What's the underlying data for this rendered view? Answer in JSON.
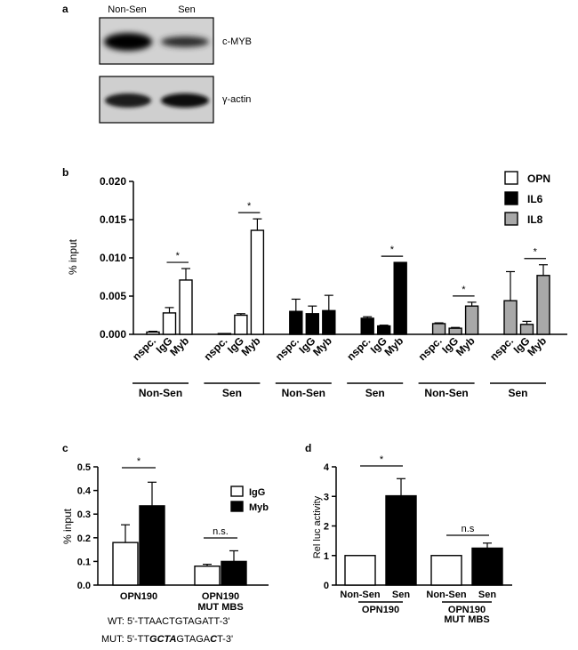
{
  "panel_a": {
    "letter": "a",
    "lanes": [
      "Non-Sen",
      "Sen"
    ],
    "blots": [
      {
        "label": "c-MYB",
        "band_intensity": [
          1.0,
          0.55
        ]
      },
      {
        "label": "γ-actin",
        "band_intensity": [
          0.9,
          0.95
        ]
      }
    ]
  },
  "chart_data": [
    {
      "panel": "b",
      "type": "bar",
      "ylabel": "% input",
      "ylim": [
        0,
        0.02
      ],
      "yticks": [
        "0.000",
        "0.005",
        "0.010",
        "0.015",
        "0.020"
      ],
      "legend": [
        {
          "name": "OPN",
          "color": "#ffffff"
        },
        {
          "name": "IL6",
          "color": "#000000"
        },
        {
          "name": "IL8",
          "color": "#a8a8a8"
        }
      ],
      "legend_position": "top-right",
      "groups": [
        {
          "series": "OPN",
          "condition": "Non-Sen",
          "categories": [
            "nspc.",
            "IgG",
            "Myb"
          ],
          "values": [
            0.0003,
            0.0028,
            0.0071
          ],
          "errors": [
            0.0001,
            0.0007,
            0.0015
          ],
          "sig": "*"
        },
        {
          "series": "OPN",
          "condition": "Sen",
          "categories": [
            "nspc.",
            "IgG",
            "Myb"
          ],
          "values": [
            0.0001,
            0.0025,
            0.0136
          ],
          "errors": [
            0.0,
            0.0002,
            0.0015
          ],
          "sig": "*"
        },
        {
          "series": "IL6",
          "condition": "Non-Sen",
          "categories": [
            "nspc.",
            "IgG",
            "Myb"
          ],
          "values": [
            0.003,
            0.0027,
            0.0031
          ],
          "errors": [
            0.0016,
            0.001,
            0.002
          ],
          "sig": ""
        },
        {
          "series": "IL6",
          "condition": "Sen",
          "categories": [
            "nspc.",
            "IgG",
            "Myb"
          ],
          "values": [
            0.0021,
            0.0011,
            0.0094
          ],
          "errors": [
            0.0002,
            0.0001,
            0.0
          ],
          "sig": "*"
        },
        {
          "series": "IL8",
          "condition": "Non-Sen",
          "categories": [
            "nspc.",
            "IgG",
            "Myb"
          ],
          "values": [
            0.0014,
            0.0008,
            0.0037
          ],
          "errors": [
            0.0001,
            0.0001,
            0.0005
          ],
          "sig": "*"
        },
        {
          "series": "IL8",
          "condition": "Sen",
          "categories": [
            "nspc.",
            "IgG",
            "Myb"
          ],
          "values": [
            0.0044,
            0.0013,
            0.0077
          ],
          "errors": [
            0.0038,
            0.0004,
            0.0014
          ],
          "sig": "*"
        }
      ]
    },
    {
      "panel": "c",
      "type": "bar",
      "ylabel": "% input",
      "ylim": [
        0,
        0.5
      ],
      "yticks": [
        "0.0",
        "0.1",
        "0.2",
        "0.3",
        "0.4",
        "0.5"
      ],
      "categories": [
        "OPN190",
        "OPN190\nMUT MBS"
      ],
      "series": [
        {
          "name": "IgG",
          "color": "#ffffff",
          "values": [
            0.18,
            0.08
          ],
          "errors": [
            0.075,
            0.008
          ]
        },
        {
          "name": "Myb",
          "color": "#000000",
          "values": [
            0.335,
            0.1
          ],
          "errors": [
            0.1,
            0.045
          ]
        }
      ],
      "sig": [
        "*",
        "n.s."
      ],
      "legend_position": "top-right"
    },
    {
      "panel": "d",
      "type": "bar",
      "ylabel": "Rel luc activity",
      "ylim": [
        0,
        4
      ],
      "yticks": [
        "0",
        "1",
        "2",
        "3",
        "4"
      ],
      "group_labels": [
        "OPN190",
        "OPN190\nMUT MBS"
      ],
      "categories": [
        "Non-Sen",
        "Sen",
        "Non-Sen",
        "Sen"
      ],
      "values": [
        1.0,
        3.02,
        1.0,
        1.25
      ],
      "errors": [
        0.0,
        0.58,
        0.0,
        0.17
      ],
      "colors": [
        "#ffffff",
        "#000000",
        "#ffffff",
        "#000000"
      ],
      "sig": [
        "*",
        "n.s"
      ]
    }
  ],
  "sequences": {
    "wt": {
      "prefix": "WT: 5'-",
      "seq": "TTAACTGTAGATT",
      "suffix": "-3'"
    },
    "mut": {
      "prefix": "MUT: 5'-TT",
      "bold1": "GCTA",
      "mid": "GTAGA",
      "bold2": "C",
      "end": "T-3'"
    }
  },
  "panel_letters": {
    "b": "b",
    "c": "c",
    "d": "d"
  }
}
